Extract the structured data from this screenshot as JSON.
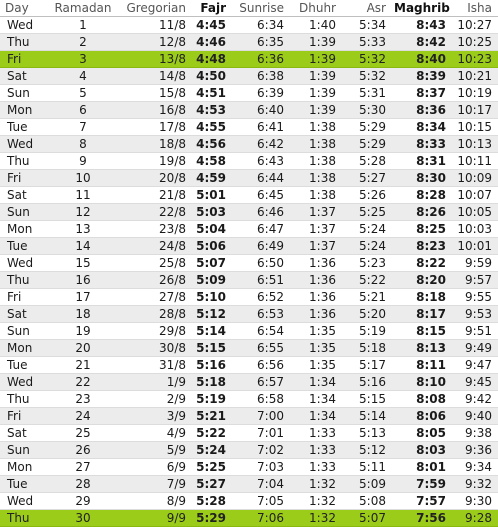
{
  "headers": {
    "day": "Day",
    "ramadan": "Ramadan",
    "gregorian": "Gregorian",
    "fajr": "Fajr",
    "sunrise": "Sunrise",
    "dhuhr": "Dhuhr",
    "asr": "Asr",
    "maghrib": "Maghrib",
    "isha": "Isha"
  },
  "highlight_color": "#9ccc1a",
  "rows": [
    {
      "day": "Wed",
      "ramadan": "1",
      "gregorian": "11/8",
      "fajr": "4:45",
      "sunrise": "6:34",
      "dhuhr": "1:40",
      "asr": "5:34",
      "maghrib": "8:43",
      "isha": "10:27",
      "highlight": false
    },
    {
      "day": "Thu",
      "ramadan": "2",
      "gregorian": "12/8",
      "fajr": "4:46",
      "sunrise": "6:35",
      "dhuhr": "1:39",
      "asr": "5:33",
      "maghrib": "8:42",
      "isha": "10:25",
      "highlight": false
    },
    {
      "day": "Fri",
      "ramadan": "3",
      "gregorian": "13/8",
      "fajr": "4:48",
      "sunrise": "6:36",
      "dhuhr": "1:39",
      "asr": "5:32",
      "maghrib": "8:40",
      "isha": "10:23",
      "highlight": true
    },
    {
      "day": "Sat",
      "ramadan": "4",
      "gregorian": "14/8",
      "fajr": "4:50",
      "sunrise": "6:38",
      "dhuhr": "1:39",
      "asr": "5:32",
      "maghrib": "8:39",
      "isha": "10:21",
      "highlight": false
    },
    {
      "day": "Sun",
      "ramadan": "5",
      "gregorian": "15/8",
      "fajr": "4:51",
      "sunrise": "6:39",
      "dhuhr": "1:39",
      "asr": "5:31",
      "maghrib": "8:37",
      "isha": "10:19",
      "highlight": false
    },
    {
      "day": "Mon",
      "ramadan": "6",
      "gregorian": "16/8",
      "fajr": "4:53",
      "sunrise": "6:40",
      "dhuhr": "1:39",
      "asr": "5:30",
      "maghrib": "8:36",
      "isha": "10:17",
      "highlight": false
    },
    {
      "day": "Tue",
      "ramadan": "7",
      "gregorian": "17/8",
      "fajr": "4:55",
      "sunrise": "6:41",
      "dhuhr": "1:38",
      "asr": "5:29",
      "maghrib": "8:34",
      "isha": "10:15",
      "highlight": false
    },
    {
      "day": "Wed",
      "ramadan": "8",
      "gregorian": "18/8",
      "fajr": "4:56",
      "sunrise": "6:42",
      "dhuhr": "1:38",
      "asr": "5:29",
      "maghrib": "8:33",
      "isha": "10:13",
      "highlight": false
    },
    {
      "day": "Thu",
      "ramadan": "9",
      "gregorian": "19/8",
      "fajr": "4:58",
      "sunrise": "6:43",
      "dhuhr": "1:38",
      "asr": "5:28",
      "maghrib": "8:31",
      "isha": "10:11",
      "highlight": false
    },
    {
      "day": "Fri",
      "ramadan": "10",
      "gregorian": "20/8",
      "fajr": "4:59",
      "sunrise": "6:44",
      "dhuhr": "1:38",
      "asr": "5:27",
      "maghrib": "8:30",
      "isha": "10:09",
      "highlight": false
    },
    {
      "day": "Sat",
      "ramadan": "11",
      "gregorian": "21/8",
      "fajr": "5:01",
      "sunrise": "6:45",
      "dhuhr": "1:38",
      "asr": "5:26",
      "maghrib": "8:28",
      "isha": "10:07",
      "highlight": false
    },
    {
      "day": "Sun",
      "ramadan": "12",
      "gregorian": "22/8",
      "fajr": "5:03",
      "sunrise": "6:46",
      "dhuhr": "1:37",
      "asr": "5:25",
      "maghrib": "8:26",
      "isha": "10:05",
      "highlight": false
    },
    {
      "day": "Mon",
      "ramadan": "13",
      "gregorian": "23/8",
      "fajr": "5:04",
      "sunrise": "6:47",
      "dhuhr": "1:37",
      "asr": "5:24",
      "maghrib": "8:25",
      "isha": "10:03",
      "highlight": false
    },
    {
      "day": "Tue",
      "ramadan": "14",
      "gregorian": "24/8",
      "fajr": "5:06",
      "sunrise": "6:49",
      "dhuhr": "1:37",
      "asr": "5:24",
      "maghrib": "8:23",
      "isha": "10:01",
      "highlight": false
    },
    {
      "day": "Wed",
      "ramadan": "15",
      "gregorian": "25/8",
      "fajr": "5:07",
      "sunrise": "6:50",
      "dhuhr": "1:36",
      "asr": "5:23",
      "maghrib": "8:22",
      "isha": "9:59",
      "highlight": false
    },
    {
      "day": "Thu",
      "ramadan": "16",
      "gregorian": "26/8",
      "fajr": "5:09",
      "sunrise": "6:51",
      "dhuhr": "1:36",
      "asr": "5:22",
      "maghrib": "8:20",
      "isha": "9:57",
      "highlight": false
    },
    {
      "day": "Fri",
      "ramadan": "17",
      "gregorian": "27/8",
      "fajr": "5:10",
      "sunrise": "6:52",
      "dhuhr": "1:36",
      "asr": "5:21",
      "maghrib": "8:18",
      "isha": "9:55",
      "highlight": false
    },
    {
      "day": "Sat",
      "ramadan": "18",
      "gregorian": "28/8",
      "fajr": "5:12",
      "sunrise": "6:53",
      "dhuhr": "1:36",
      "asr": "5:20",
      "maghrib": "8:17",
      "isha": "9:53",
      "highlight": false
    },
    {
      "day": "Sun",
      "ramadan": "19",
      "gregorian": "29/8",
      "fajr": "5:14",
      "sunrise": "6:54",
      "dhuhr": "1:35",
      "asr": "5:19",
      "maghrib": "8:15",
      "isha": "9:51",
      "highlight": false
    },
    {
      "day": "Mon",
      "ramadan": "20",
      "gregorian": "30/8",
      "fajr": "5:15",
      "sunrise": "6:55",
      "dhuhr": "1:35",
      "asr": "5:18",
      "maghrib": "8:13",
      "isha": "9:49",
      "highlight": false
    },
    {
      "day": "Tue",
      "ramadan": "21",
      "gregorian": "31/8",
      "fajr": "5:16",
      "sunrise": "6:56",
      "dhuhr": "1:35",
      "asr": "5:17",
      "maghrib": "8:11",
      "isha": "9:47",
      "highlight": false
    },
    {
      "day": "Wed",
      "ramadan": "22",
      "gregorian": "1/9",
      "fajr": "5:18",
      "sunrise": "6:57",
      "dhuhr": "1:34",
      "asr": "5:16",
      "maghrib": "8:10",
      "isha": "9:45",
      "highlight": false
    },
    {
      "day": "Thu",
      "ramadan": "23",
      "gregorian": "2/9",
      "fajr": "5:19",
      "sunrise": "6:58",
      "dhuhr": "1:34",
      "asr": "5:15",
      "maghrib": "8:08",
      "isha": "9:42",
      "highlight": false
    },
    {
      "day": "Fri",
      "ramadan": "24",
      "gregorian": "3/9",
      "fajr": "5:21",
      "sunrise": "7:00",
      "dhuhr": "1:34",
      "asr": "5:14",
      "maghrib": "8:06",
      "isha": "9:40",
      "highlight": false
    },
    {
      "day": "Sat",
      "ramadan": "25",
      "gregorian": "4/9",
      "fajr": "5:22",
      "sunrise": "7:01",
      "dhuhr": "1:33",
      "asr": "5:13",
      "maghrib": "8:05",
      "isha": "9:38",
      "highlight": false
    },
    {
      "day": "Sun",
      "ramadan": "26",
      "gregorian": "5/9",
      "fajr": "5:24",
      "sunrise": "7:02",
      "dhuhr": "1:33",
      "asr": "5:12",
      "maghrib": "8:03",
      "isha": "9:36",
      "highlight": false
    },
    {
      "day": "Mon",
      "ramadan": "27",
      "gregorian": "6/9",
      "fajr": "5:25",
      "sunrise": "7:03",
      "dhuhr": "1:33",
      "asr": "5:11",
      "maghrib": "8:01",
      "isha": "9:34",
      "highlight": false
    },
    {
      "day": "Tue",
      "ramadan": "28",
      "gregorian": "7/9",
      "fajr": "5:27",
      "sunrise": "7:04",
      "dhuhr": "1:32",
      "asr": "5:09",
      "maghrib": "7:59",
      "isha": "9:32",
      "highlight": false
    },
    {
      "day": "Wed",
      "ramadan": "29",
      "gregorian": "8/9",
      "fajr": "5:28",
      "sunrise": "7:05",
      "dhuhr": "1:32",
      "asr": "5:08",
      "maghrib": "7:57",
      "isha": "9:30",
      "highlight": false
    },
    {
      "day": "Thu",
      "ramadan": "30",
      "gregorian": "9/9",
      "fajr": "5:29",
      "sunrise": "7:06",
      "dhuhr": "1:32",
      "asr": "5:07",
      "maghrib": "7:56",
      "isha": "9:28",
      "highlight": true
    }
  ]
}
